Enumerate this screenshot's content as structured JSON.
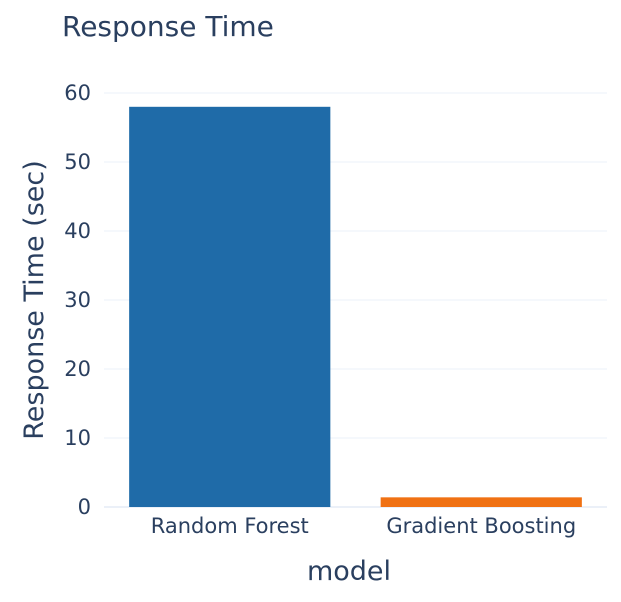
{
  "chart_data": {
    "type": "bar",
    "title": "Response Time",
    "xlabel": "model",
    "ylabel": "Response Time (sec)",
    "categories": [
      "Random Forest",
      "Gradient Boosting"
    ],
    "values": [
      58,
      1.4
    ],
    "bar_colors": [
      "#1f6ba8",
      "#f07113"
    ],
    "ylim": [
      0,
      60
    ],
    "yticks": [
      0,
      10,
      20,
      30,
      40,
      50,
      60
    ],
    "grid": true,
    "legend": "none"
  }
}
